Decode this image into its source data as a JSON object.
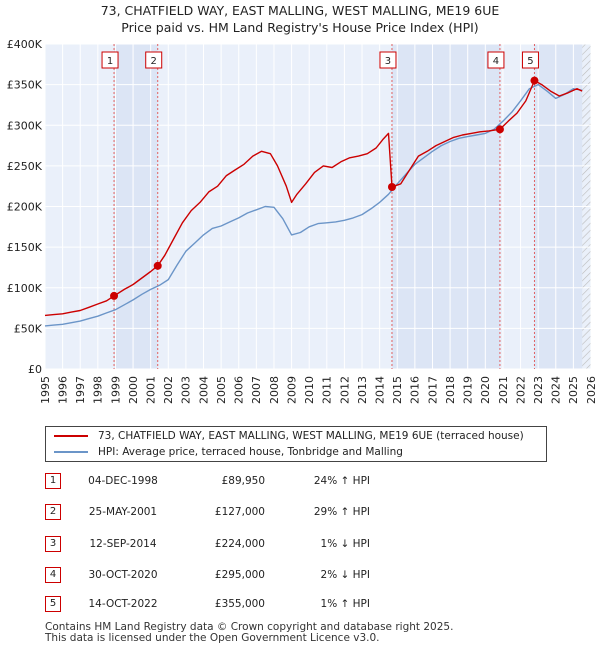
{
  "chart_data": {
    "type": "line",
    "title": "73, CHATFIELD WAY, EAST MALLING, WEST MALLING, ME19 6UE",
    "subtitle": "Price paid vs. HM Land Registry's House Price Index (HPI)",
    "xlim": [
      1995,
      2026
    ],
    "ylim": [
      0,
      400000
    ],
    "x_ticks": [
      "1995",
      "1996",
      "1997",
      "1998",
      "1999",
      "2000",
      "2001",
      "2002",
      "2003",
      "2004",
      "2005",
      "2006",
      "2007",
      "2008",
      "2009",
      "2010",
      "2011",
      "2012",
      "2013",
      "2014",
      "2015",
      "2016",
      "2017",
      "2018",
      "2019",
      "2020",
      "2021",
      "2022",
      "2023",
      "2024",
      "2025",
      "2026"
    ],
    "y_ticks": [
      {
        "value": 0,
        "label": "£0"
      },
      {
        "value": 50000,
        "label": "£50K"
      },
      {
        "value": 100000,
        "label": "£100K"
      },
      {
        "value": 150000,
        "label": "£150K"
      },
      {
        "value": 200000,
        "label": "£200K"
      },
      {
        "value": 250000,
        "label": "£250K"
      },
      {
        "value": 300000,
        "label": "£300K"
      },
      {
        "value": 350000,
        "label": "£350K"
      },
      {
        "value": 400000,
        "label": "£400K"
      }
    ],
    "grid": true,
    "future_hatch_from": 2025.5,
    "series": [
      {
        "name": "73, CHATFIELD WAY, EAST MALLING, WEST MALLING, ME19 6UE (terraced house)",
        "color": "#cc0000",
        "x": [
          1995.0,
          1995.5,
          1996.0,
          1996.5,
          1997.0,
          1997.5,
          1998.0,
          1998.5,
          1998.92,
          1999.5,
          2000.0,
          2000.5,
          2001.0,
          2001.4,
          2001.8,
          2002.3,
          2002.8,
          2003.3,
          2003.8,
          2004.3,
          2004.8,
          2005.3,
          2005.8,
          2006.3,
          2006.8,
          2007.3,
          2007.8,
          2008.2,
          2008.7,
          2009.0,
          2009.3,
          2009.8,
          2010.3,
          2010.8,
          2011.3,
          2011.8,
          2012.3,
          2012.8,
          2013.3,
          2013.8,
          2014.2,
          2014.5,
          2014.7,
          2015.2,
          2015.7,
          2016.2,
          2016.7,
          2017.2,
          2017.7,
          2018.2,
          2018.7,
          2019.2,
          2019.7,
          2020.2,
          2020.83,
          2021.3,
          2021.8,
          2022.3,
          2022.79,
          2023.2,
          2023.7,
          2024.2,
          2024.7,
          2025.2,
          2025.5
        ],
        "y": [
          66000,
          67000,
          68000,
          70000,
          72000,
          76000,
          80000,
          84000,
          89950,
          98000,
          104000,
          112000,
          120000,
          127000,
          140000,
          160000,
          180000,
          195000,
          205000,
          218000,
          225000,
          238000,
          245000,
          252000,
          262000,
          268000,
          265000,
          250000,
          225000,
          205000,
          215000,
          228000,
          242000,
          250000,
          248000,
          255000,
          260000,
          262000,
          265000,
          272000,
          283000,
          290000,
          224000,
          228000,
          245000,
          262000,
          268000,
          275000,
          280000,
          285000,
          288000,
          290000,
          292000,
          293000,
          295000,
          305000,
          315000,
          330000,
          355000,
          350000,
          342000,
          336000,
          340000,
          345000,
          342000
        ]
      },
      {
        "name": "HPI: Average price, terraced house, Tonbridge and Malling",
        "color": "#6b95c8",
        "x": [
          1995.0,
          1995.5,
          1996.0,
          1996.5,
          1997.0,
          1997.5,
          1998.0,
          1998.5,
          1999.0,
          1999.5,
          2000.0,
          2000.5,
          2001.0,
          2001.5,
          2002.0,
          2002.5,
          2003.0,
          2003.5,
          2004.0,
          2004.5,
          2005.0,
          2005.5,
          2006.0,
          2006.5,
          2007.0,
          2007.5,
          2008.0,
          2008.5,
          2009.0,
          2009.5,
          2010.0,
          2010.5,
          2011.0,
          2011.5,
          2012.0,
          2012.5,
          2013.0,
          2013.5,
          2014.0,
          2014.5,
          2015.0,
          2015.5,
          2016.0,
          2016.5,
          2017.0,
          2017.5,
          2018.0,
          2018.5,
          2019.0,
          2019.5,
          2020.0,
          2020.5,
          2021.0,
          2021.5,
          2022.0,
          2022.5,
          2023.0,
          2023.5,
          2024.0,
          2024.5,
          2025.0,
          2025.5
        ],
        "y": [
          53000,
          54000,
          55000,
          57000,
          59000,
          62000,
          65000,
          69000,
          73000,
          79000,
          85000,
          92000,
          98000,
          103000,
          110000,
          128000,
          145000,
          155000,
          165000,
          173000,
          176000,
          181000,
          186000,
          192000,
          196000,
          200000,
          199000,
          185000,
          165000,
          168000,
          175000,
          179000,
          180000,
          181000,
          183000,
          186000,
          190000,
          197000,
          205000,
          215000,
          228000,
          240000,
          252000,
          260000,
          268000,
          275000,
          280000,
          284000,
          286000,
          288000,
          290000,
          295000,
          305000,
          316000,
          330000,
          345000,
          350000,
          342000,
          333000,
          338000,
          345000,
          343000
        ]
      }
    ],
    "sale_markers": [
      {
        "label": "1",
        "x": 1998.92,
        "y": 89950
      },
      {
        "label": "2",
        "x": 2001.4,
        "y": 127000
      },
      {
        "label": "3",
        "x": 2014.7,
        "y": 224000
      },
      {
        "label": "4",
        "x": 2020.83,
        "y": 295000
      },
      {
        "label": "5",
        "x": 2022.79,
        "y": 355000
      }
    ]
  },
  "legend": {
    "items": [
      {
        "label": "73, CHATFIELD WAY, EAST MALLING, WEST MALLING, ME19 6UE (terraced house)",
        "color": "#cc0000"
      },
      {
        "label": "HPI: Average price, terraced house, Tonbridge and Malling",
        "color": "#6b95c8"
      }
    ]
  },
  "transactions": [
    {
      "num": "1",
      "date": "04-DEC-1998",
      "price": "£89,950",
      "hpi": "24% ↑ HPI"
    },
    {
      "num": "2",
      "date": "25-MAY-2001",
      "price": "£127,000",
      "hpi": "29% ↑ HPI"
    },
    {
      "num": "3",
      "date": "12-SEP-2014",
      "price": "£224,000",
      "hpi": "1% ↓ HPI"
    },
    {
      "num": "4",
      "date": "30-OCT-2020",
      "price": "£295,000",
      "hpi": "2% ↓ HPI"
    },
    {
      "num": "5",
      "date": "14-OCT-2022",
      "price": "£355,000",
      "hpi": "1% ↑ HPI"
    }
  ],
  "footer": {
    "line1": "Contains HM Land Registry data © Crown copyright and database right 2025.",
    "line2": "This data is licensed under the Open Government Licence v3.0."
  }
}
